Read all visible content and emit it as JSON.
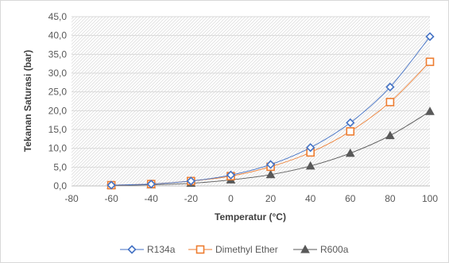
{
  "chart_data": {
    "type": "line",
    "title": "",
    "xlabel": "Temperatur (°C)",
    "ylabel": "Tekanan Saturasi (bar)",
    "xlim": [
      -80,
      100
    ],
    "ylim": [
      0,
      45
    ],
    "x_ticks": [
      "-80",
      "-60",
      "-40",
      "-20",
      "0",
      "20",
      "40",
      "60",
      "80",
      "100"
    ],
    "y_ticks": [
      "0,0",
      "5,0",
      "10,0",
      "15,0",
      "20,0",
      "25,0",
      "30,0",
      "35,0",
      "40,0",
      "45,0"
    ],
    "grid": true,
    "legend_position": "bottom",
    "x": [
      -60,
      -40,
      -20,
      0,
      20,
      40,
      60,
      80,
      100
    ],
    "series": [
      {
        "name": "R134a",
        "color": "#4472C4",
        "marker": "diamond",
        "values": [
          0.2,
          0.5,
          1.3,
          2.9,
          5.7,
          10.2,
          16.8,
          26.3,
          39.7
        ]
      },
      {
        "name": "Dimethyl Ether",
        "color": "#ED7D31",
        "marker": "square",
        "values": [
          0.2,
          0.5,
          1.3,
          2.6,
          5.1,
          8.9,
          14.5,
          22.3,
          33.0
        ]
      },
      {
        "name": "R600a",
        "color": "#595959",
        "marker": "triangle",
        "values": [
          0.1,
          0.3,
          0.7,
          1.6,
          3.0,
          5.3,
          8.7,
          13.4,
          19.8
        ]
      }
    ]
  }
}
